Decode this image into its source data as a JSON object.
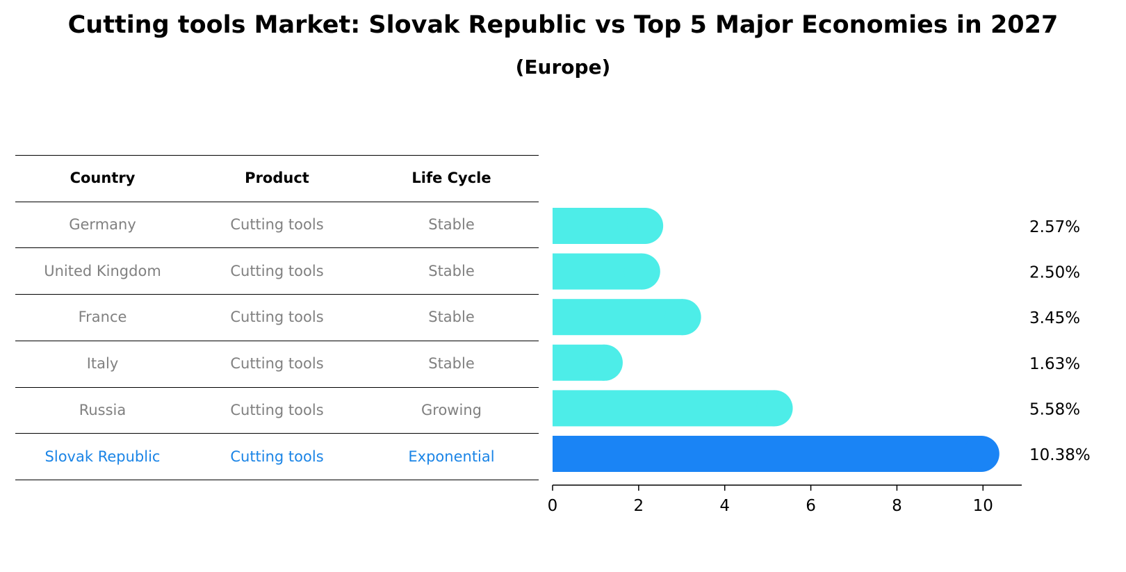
{
  "title": "Cutting tools Market: Slovak Republic vs Top 5 Major Economies in 2027",
  "subtitle": "(Europe)",
  "table": {
    "headers": [
      "Country",
      "Product",
      "Life Cycle"
    ],
    "rows": [
      [
        "Germany",
        "Cutting tools",
        "Stable"
      ],
      [
        "United Kingdom",
        "Cutting tools",
        "Stable"
      ],
      [
        "France",
        "Cutting tools",
        "Stable"
      ],
      [
        "Italy",
        "Cutting tools",
        "Stable"
      ],
      [
        "Russia",
        "Cutting tools",
        "Growing"
      ],
      [
        "Slovak Republic",
        "Cutting tools",
        "Exponential"
      ]
    ],
    "highlight_row": 5
  },
  "colors": {
    "bar": "#4dede8",
    "highlight": "#1a84f5",
    "muted_text": "#808080",
    "highlight_text": "#1a84e6"
  },
  "chart_data": {
    "type": "bar",
    "orientation": "horizontal",
    "categories": [
      "Germany",
      "United Kingdom",
      "France",
      "Italy",
      "Russia",
      "Slovak Republic"
    ],
    "values": [
      2.57,
      2.5,
      3.45,
      1.63,
      5.58,
      10.38
    ],
    "value_labels": [
      "2.57%",
      "2.50%",
      "3.45%",
      "1.63%",
      "5.58%",
      "10.38%"
    ],
    "xlim": [
      0,
      10.9
    ],
    "xticks": [
      0,
      2,
      4,
      6,
      8,
      10
    ],
    "grid": false
  }
}
